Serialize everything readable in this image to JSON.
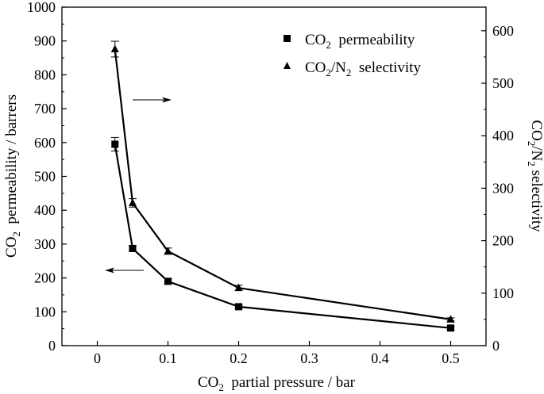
{
  "chart_data": {
    "type": "line",
    "x": [
      0.025,
      0.05,
      0.1,
      0.2,
      0.5
    ],
    "x_ticks": [
      "0",
      "0.1",
      "0.2",
      "0.3",
      "0.4",
      "0.5"
    ],
    "x_tick_values": [
      0,
      0.1,
      0.2,
      0.3,
      0.4,
      0.5
    ],
    "xlim": [
      -0.05,
      0.55
    ],
    "xlabel": {
      "pre": "CO",
      "sub": "2",
      "post": "  partial pressure / bar"
    },
    "y_left": {
      "lim": [
        0,
        1000
      ],
      "ticks": [
        "0",
        "100",
        "200",
        "300",
        "400",
        "500",
        "600",
        "700",
        "800",
        "900",
        "1000"
      ],
      "tick_values": [
        0,
        100,
        200,
        300,
        400,
        500,
        600,
        700,
        800,
        900,
        1000
      ],
      "label": {
        "pre": "CO",
        "sub": "2",
        "post": "  permeability / barrers"
      }
    },
    "y_right": {
      "lim": [
        0,
        645
      ],
      "ticks": [
        "0",
        "100",
        "200",
        "300",
        "400",
        "500",
        "600"
      ],
      "tick_values": [
        0,
        100,
        200,
        300,
        400,
        500,
        600
      ],
      "label": {
        "a": "CO",
        "s1": "2",
        "b": "/N",
        "s2": "2",
        "c": " selectivity"
      }
    },
    "series": [
      {
        "name": "CO2 permeability",
        "axis": "left",
        "marker": "square",
        "values": [
          595,
          287,
          190,
          115,
          52
        ],
        "errors": [
          20,
          8,
          8,
          6,
          5
        ]
      },
      {
        "name": "CO2/N2 selectivity",
        "axis": "right",
        "marker": "triangle",
        "values": [
          565,
          272,
          180,
          110,
          50
        ],
        "errors": [
          15,
          8,
          6,
          5,
          3
        ]
      }
    ],
    "legend": {
      "position": "top-right",
      "items": [
        {
          "marker": "square",
          "pre": "CO",
          "sub": "2",
          "post": "  permeability"
        },
        {
          "marker": "triangle",
          "pre": "CO",
          "sub1": "2",
          "mid": "/N",
          "sub2": "2",
          "post": "  selectivity"
        }
      ]
    },
    "annotations": [
      {
        "type": "arrow",
        "direction": "right",
        "meaning": "selectivity series uses right axis"
      },
      {
        "type": "arrow",
        "direction": "left",
        "meaning": "permeability series uses left axis"
      }
    ],
    "grid": false
  }
}
